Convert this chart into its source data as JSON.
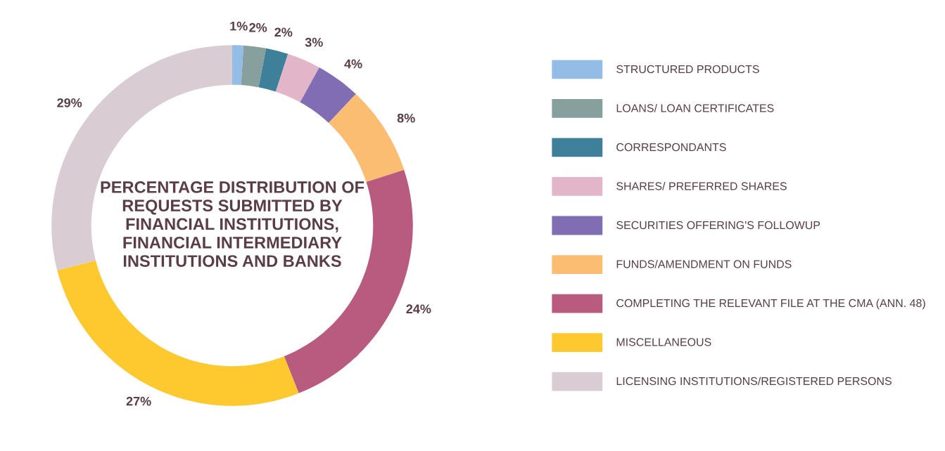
{
  "chart_data": {
    "type": "donut",
    "title": "PERCENTAGE DISTRIBUTION OF\nREQUESTS SUBMITTED BY\nFINANCIAL INSTITUTIONS,\nFINANCIAL INTERMEDIARY\nINSTITUTIONS AND BANKS",
    "categories": [
      "STRUCTURED PRODUCTS",
      "LOANS/ LOAN CERTIFICATES",
      "CORRESPONDANTS",
      "SHARES/ PREFERRED SHARES",
      "SECURITIES OFFERING'S FOLLOWUP",
      "FUNDS/AMENDMENT ON FUNDS",
      "COMPLETING THE RELEVANT FILE AT THE CMA (ANN. 48)",
      "MISCELLANEOUS",
      "LICENSING INSTITUTIONS/REGISTERED PERSONS"
    ],
    "values": [
      1,
      2,
      2,
      3,
      4,
      8,
      24,
      27,
      29
    ],
    "value_labels": [
      "1%",
      "2%",
      "2%",
      "3%",
      "4%",
      "8%",
      "24%",
      "27%",
      "29%"
    ],
    "colors": [
      "#93bde6",
      "#879f9d",
      "#3e7f9a",
      "#e2b6c8",
      "#806db4",
      "#fbbd72",
      "#b95b7e",
      "#fec92f",
      "#d9cdd3"
    ],
    "legend": "right"
  }
}
